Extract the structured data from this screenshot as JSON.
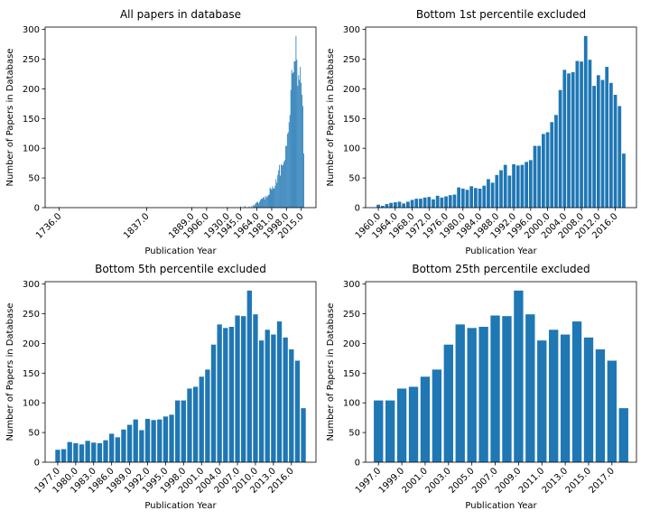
{
  "chart_data": [
    {
      "type": "bar",
      "title": "All papers in database",
      "xlabel": "Publication Year",
      "ylabel": "Number of Papers in Database",
      "color": "#1f77b4",
      "x": [
        1736,
        1837,
        1889,
        1906,
        1930,
        1945,
        1950,
        1955,
        1958,
        1960,
        1961,
        1962,
        1963,
        1964,
        1965,
        1966,
        1967,
        1968,
        1969,
        1970,
        1971,
        1972,
        1973,
        1974,
        1975,
        1976,
        1977,
        1978,
        1979,
        1980,
        1981,
        1982,
        1983,
        1984,
        1985,
        1986,
        1987,
        1988,
        1989,
        1990,
        1991,
        1992,
        1993,
        1994,
        1995,
        1996,
        1997,
        1998,
        1999,
        2000,
        2001,
        2002,
        2003,
        2004,
        2005,
        2006,
        2007,
        2008,
        2009,
        2010,
        2011,
        2012,
        2013,
        2014,
        2015,
        2016,
        2017,
        2018
      ],
      "values": [
        1,
        1,
        1,
        1,
        1,
        2,
        3,
        2,
        3,
        5,
        3,
        6,
        8,
        9,
        10,
        7,
        10,
        13,
        15,
        15,
        17,
        18,
        14,
        20,
        17,
        19,
        21,
        22,
        34,
        32,
        30,
        36,
        33,
        32,
        37,
        48,
        42,
        55,
        63,
        72,
        54,
        73,
        71,
        72,
        77,
        80,
        104,
        104,
        124,
        127,
        144,
        156,
        198,
        232,
        226,
        228,
        247,
        246,
        289,
        249,
        205,
        223,
        215,
        237,
        210,
        190,
        171,
        91
      ],
      "xlim": [
        1720,
        2032
      ],
      "xticks": [
        {
          "value": 1736,
          "label": "1736.0"
        },
        {
          "value": 1837,
          "label": "1837.0"
        },
        {
          "value": 1889,
          "label": "1889.0"
        },
        {
          "value": 1906,
          "label": "1906.0"
        },
        {
          "value": 1930,
          "label": "1930.0"
        },
        {
          "value": 1945,
          "label": "1945.0"
        },
        {
          "value": 1964,
          "label": "1964.0"
        },
        {
          "value": 1981,
          "label": "1981.0"
        },
        {
          "value": 1998,
          "label": "1998.0"
        },
        {
          "value": 2015,
          "label": "2015.0"
        }
      ],
      "ylim": [
        0,
        304
      ],
      "yticks": [
        0,
        50,
        100,
        150,
        200,
        250,
        300
      ]
    },
    {
      "type": "bar",
      "title": "Bottom 1st percentile excluded",
      "xlabel": "Publication Year",
      "ylabel": "Number of Papers in Database",
      "color": "#1f77b4",
      "x": [
        1960,
        1961,
        1962,
        1963,
        1964,
        1965,
        1966,
        1967,
        1968,
        1969,
        1970,
        1971,
        1972,
        1973,
        1974,
        1975,
        1976,
        1977,
        1978,
        1979,
        1980,
        1981,
        1982,
        1983,
        1984,
        1985,
        1986,
        1987,
        1988,
        1989,
        1990,
        1991,
        1992,
        1993,
        1994,
        1995,
        1996,
        1997,
        1998,
        1999,
        2000,
        2001,
        2002,
        2003,
        2004,
        2005,
        2006,
        2007,
        2008,
        2009,
        2010,
        2011,
        2012,
        2013,
        2014,
        2015,
        2016,
        2017,
        2018
      ],
      "values": [
        5,
        3,
        6,
        8,
        9,
        10,
        7,
        10,
        13,
        15,
        15,
        17,
        18,
        14,
        20,
        17,
        19,
        21,
        22,
        34,
        32,
        30,
        36,
        33,
        32,
        37,
        48,
        42,
        55,
        63,
        72,
        54,
        73,
        71,
        72,
        77,
        80,
        104,
        104,
        124,
        127,
        144,
        156,
        198,
        232,
        226,
        228,
        247,
        246,
        289,
        249,
        205,
        223,
        215,
        237,
        210,
        190,
        171,
        91
      ],
      "xlim": [
        1957,
        2021
      ],
      "xticks": [
        {
          "value": 1960,
          "label": "1960.0"
        },
        {
          "value": 1964,
          "label": "1964.0"
        },
        {
          "value": 1968,
          "label": "1968.0"
        },
        {
          "value": 1972,
          "label": "1972.0"
        },
        {
          "value": 1976,
          "label": "1976.0"
        },
        {
          "value": 1980,
          "label": "1980.0"
        },
        {
          "value": 1984,
          "label": "1984.0"
        },
        {
          "value": 1988,
          "label": "1988.0"
        },
        {
          "value": 1992,
          "label": "1992.0"
        },
        {
          "value": 1996,
          "label": "1996.0"
        },
        {
          "value": 2000,
          "label": "2000.0"
        },
        {
          "value": 2004,
          "label": "2004.0"
        },
        {
          "value": 2008,
          "label": "2008.0"
        },
        {
          "value": 2012,
          "label": "2012.0"
        },
        {
          "value": 2016,
          "label": "2016.0"
        }
      ],
      "ylim": [
        0,
        304
      ],
      "yticks": [
        0,
        50,
        100,
        150,
        200,
        250,
        300
      ]
    },
    {
      "type": "bar",
      "title": "Bottom 5th percentile excluded",
      "xlabel": "Publication Year",
      "ylabel": "Number of Papers in Database",
      "color": "#1f77b4",
      "x": [
        1977,
        1978,
        1979,
        1980,
        1981,
        1982,
        1983,
        1984,
        1985,
        1986,
        1987,
        1988,
        1989,
        1990,
        1991,
        1992,
        1993,
        1994,
        1995,
        1996,
        1997,
        1998,
        1999,
        2000,
        2001,
        2002,
        2003,
        2004,
        2005,
        2006,
        2007,
        2008,
        2009,
        2010,
        2011,
        2012,
        2013,
        2014,
        2015,
        2016,
        2017,
        2018
      ],
      "values": [
        21,
        22,
        34,
        32,
        30,
        36,
        33,
        32,
        37,
        48,
        42,
        55,
        63,
        72,
        54,
        73,
        71,
        72,
        77,
        80,
        104,
        104,
        124,
        127,
        144,
        156,
        198,
        232,
        226,
        228,
        247,
        246,
        289,
        249,
        205,
        223,
        215,
        237,
        210,
        190,
        171,
        91
      ],
      "xlim": [
        1974.9,
        2020.1
      ],
      "xticks": [
        {
          "value": 1977,
          "label": "1977.0"
        },
        {
          "value": 1980,
          "label": "1980.0"
        },
        {
          "value": 1983,
          "label": "1983.0"
        },
        {
          "value": 1986,
          "label": "1986.0"
        },
        {
          "value": 1989,
          "label": "1989.0"
        },
        {
          "value": 1992,
          "label": "1992.0"
        },
        {
          "value": 1995,
          "label": "1995.0"
        },
        {
          "value": 1998,
          "label": "1998.0"
        },
        {
          "value": 2001,
          "label": "2001.0"
        },
        {
          "value": 2004,
          "label": "2004.0"
        },
        {
          "value": 2007,
          "label": "2007.0"
        },
        {
          "value": 2010,
          "label": "2010.0"
        },
        {
          "value": 2013,
          "label": "2013.0"
        },
        {
          "value": 2016,
          "label": "2016.0"
        }
      ],
      "ylim": [
        0,
        304
      ],
      "yticks": [
        0,
        50,
        100,
        150,
        200,
        250,
        300
      ]
    },
    {
      "type": "bar",
      "title": "Bottom 25th percentile excluded",
      "xlabel": "Publication Year",
      "ylabel": "Number of Papers in Database",
      "color": "#1f77b4",
      "x": [
        1997,
        1998,
        1999,
        2000,
        2001,
        2002,
        2003,
        2004,
        2005,
        2006,
        2007,
        2008,
        2009,
        2010,
        2011,
        2012,
        2013,
        2014,
        2015,
        2016,
        2017,
        2018
      ],
      "values": [
        104,
        104,
        124,
        127,
        144,
        156,
        198,
        232,
        226,
        228,
        247,
        246,
        289,
        249,
        205,
        223,
        215,
        237,
        210,
        190,
        171,
        91
      ],
      "xlim": [
        1995.9,
        2019.1
      ],
      "xticks": [
        {
          "value": 1997,
          "label": "1997.0"
        },
        {
          "value": 1999,
          "label": "1999.0"
        },
        {
          "value": 2001,
          "label": "2001.0"
        },
        {
          "value": 2003,
          "label": "2003.0"
        },
        {
          "value": 2005,
          "label": "2005.0"
        },
        {
          "value": 2007,
          "label": "2007.0"
        },
        {
          "value": 2009,
          "label": "2009.0"
        },
        {
          "value": 2011,
          "label": "2011.0"
        },
        {
          "value": 2013,
          "label": "2013.0"
        },
        {
          "value": 2015,
          "label": "2015.0"
        },
        {
          "value": 2017,
          "label": "2017.0"
        }
      ],
      "ylim": [
        0,
        304
      ],
      "yticks": [
        0,
        50,
        100,
        150,
        200,
        250,
        300
      ]
    }
  ]
}
